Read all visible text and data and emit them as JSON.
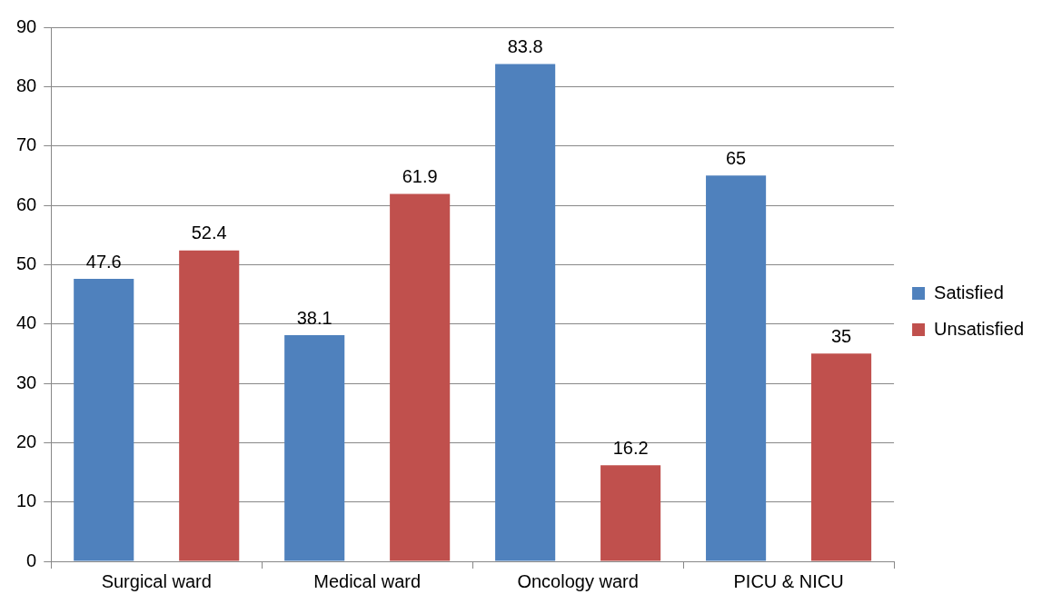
{
  "chart_data": {
    "type": "bar",
    "categories": [
      "Surgical ward",
      "Medical ward",
      "Oncology ward",
      "PICU & NICU"
    ],
    "series": [
      {
        "name": "Satisfied",
        "color": "#4f81bd",
        "values": [
          47.6,
          38.1,
          83.8,
          65
        ]
      },
      {
        "name": "Unsatisfied",
        "color": "#c0504d",
        "values": [
          52.4,
          61.9,
          16.2,
          35
        ]
      }
    ],
    "ylim": [
      0,
      90
    ],
    "yticks": [
      0,
      10,
      20,
      30,
      40,
      50,
      60,
      70,
      80,
      90
    ],
    "grid": "y",
    "legend": "right",
    "data_labels": true
  }
}
